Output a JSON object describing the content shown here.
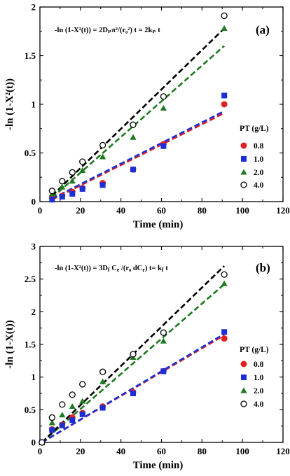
{
  "chart_data": [
    {
      "type": "scatter",
      "panel_label": "(a)",
      "equation": "-ln (1-X²(t)) = 2Dₚπ²/(r₀²) t = 2kₚ t",
      "xlabel": "Time (min)",
      "ylabel": "-ln (1-X²(t))",
      "xlim": [
        0,
        120
      ],
      "ylim": [
        0,
        2
      ],
      "xticks": [
        "0",
        "20",
        "40",
        "60",
        "80",
        "100",
        "120"
      ],
      "yticks": [
        "0",
        "0.5",
        "1",
        "1.5",
        "2"
      ],
      "grid": false,
      "legend_title": "PT (g/L)",
      "legend_position": "right",
      "series": [
        {
          "name": "0.8",
          "color": "#e02020",
          "marker": "circle-filled",
          "x": [
            6,
            11,
            16,
            21,
            31,
            46,
            61,
            91
          ],
          "y": [
            0.04,
            0.06,
            0.1,
            0.14,
            0.19,
            0.33,
            0.59,
            1.0
          ],
          "fit": [
            [
              6,
              0.02
            ],
            [
              91,
              0.91
            ]
          ]
        },
        {
          "name": "1.0",
          "color": "#1a2fd6",
          "marker": "square-filled",
          "x": [
            6,
            11,
            16,
            21,
            31,
            46,
            61,
            91
          ],
          "y": [
            0.02,
            0.05,
            0.08,
            0.13,
            0.17,
            0.33,
            0.57,
            1.09
          ],
          "fit": [
            [
              6,
              0.03
            ],
            [
              91,
              0.93
            ]
          ]
        },
        {
          "name": "2.0",
          "color": "#1e7a1e",
          "marker": "triangle-filled",
          "x": [
            6,
            11,
            16,
            21,
            31,
            46,
            61,
            91
          ],
          "y": [
            0.08,
            0.15,
            0.21,
            0.32,
            0.46,
            0.66,
            0.96,
            1.78
          ],
          "fit": [
            [
              6,
              0.04
            ],
            [
              91,
              1.6
            ]
          ]
        },
        {
          "name": "4.0",
          "color": "#000000",
          "marker": "circle-open",
          "x": [
            6,
            11,
            16,
            21,
            31,
            46,
            61,
            91
          ],
          "y": [
            0.11,
            0.21,
            0.3,
            0.41,
            0.58,
            0.79,
            1.08,
            1.91
          ],
          "fit": [
            [
              6,
              0.06
            ],
            [
              91,
              1.78
            ]
          ]
        }
      ]
    },
    {
      "type": "scatter",
      "panel_label": "(b)",
      "equation": "-ln (1-X²(t)) = 3D_f C_e /(r₀ dC_r) t= k_f t",
      "xlabel": "Time (min)",
      "ylabel": "-ln (1-X(t))",
      "xlim": [
        0,
        120
      ],
      "ylim": [
        0,
        3
      ],
      "xticks": [
        "0",
        "20",
        "40",
        "60",
        "80",
        "100",
        "120"
      ],
      "yticks": [
        "0",
        "0.5",
        "1",
        "1.5",
        "2",
        "2.5",
        "3"
      ],
      "grid": false,
      "legend_title": "PT (g/L)",
      "legend_position": "right",
      "series": [
        {
          "name": "0.8",
          "color": "#e02020",
          "marker": "circle-filled",
          "x": [
            1,
            6,
            11,
            16,
            21,
            31,
            46,
            61,
            91
          ],
          "y": [
            0.0,
            0.2,
            0.27,
            0.38,
            0.45,
            0.55,
            0.77,
            1.09,
            1.59
          ],
          "fit": [
            [
              1,
              0.0
            ],
            [
              91,
              1.64
            ]
          ]
        },
        {
          "name": "1.0",
          "color": "#1a2fd6",
          "marker": "square-filled",
          "x": [
            1,
            6,
            11,
            16,
            21,
            31,
            46,
            61,
            91
          ],
          "y": [
            0.0,
            0.19,
            0.26,
            0.34,
            0.43,
            0.53,
            0.75,
            1.09,
            1.69
          ],
          "fit": [
            [
              1,
              0.0
            ],
            [
              91,
              1.66
            ]
          ]
        },
        {
          "name": "2.0",
          "color": "#1e7a1e",
          "marker": "triangle-filled",
          "x": [
            1,
            6,
            11,
            16,
            21,
            31,
            46,
            61,
            91
          ],
          "y": [
            0.0,
            0.3,
            0.42,
            0.55,
            0.63,
            0.93,
            1.3,
            1.55,
            2.43
          ],
          "fit": [
            [
              1,
              0.0
            ],
            [
              91,
              2.42
            ]
          ]
        },
        {
          "name": "4.0",
          "color": "#000000",
          "marker": "circle-open",
          "x": [
            1,
            6,
            11,
            16,
            21,
            31,
            46,
            61,
            91
          ],
          "y": [
            0.0,
            0.38,
            0.58,
            0.73,
            0.89,
            1.08,
            1.35,
            1.68,
            2.57
          ],
          "fit": [
            [
              1,
              0.0
            ],
            [
              91,
              2.7
            ]
          ]
        }
      ]
    }
  ]
}
